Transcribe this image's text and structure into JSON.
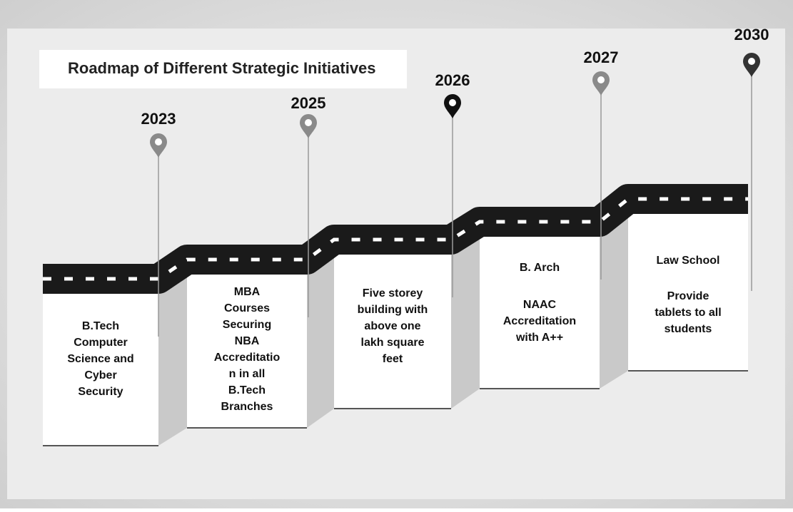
{
  "title": "Roadmap of Different Strategic Initiatives",
  "milestones": [
    {
      "year": "2023",
      "paragraphs": [
        [
          "B.Tech",
          "Computer",
          "Science and",
          "Cyber",
          "Security"
        ]
      ]
    },
    {
      "year": "2025",
      "paragraphs": [
        [
          "MBA",
          "Courses",
          "Securing",
          "NBA",
          "Accreditatio",
          "n in all",
          "B.Tech",
          "Branches"
        ]
      ]
    },
    {
      "year": "2026",
      "paragraphs": [
        [
          "Five storey",
          "building with",
          "above one",
          "lakh square",
          "feet"
        ]
      ]
    },
    {
      "year": "2027",
      "paragraphs": [
        [
          "B. Arch"
        ],
        [
          "NAAC",
          "Accreditation",
          "with A++"
        ]
      ]
    },
    {
      "year": "2030",
      "paragraphs": [
        [
          "Law School"
        ],
        [
          "Provide",
          "tablets to all",
          "students"
        ]
      ]
    }
  ]
}
